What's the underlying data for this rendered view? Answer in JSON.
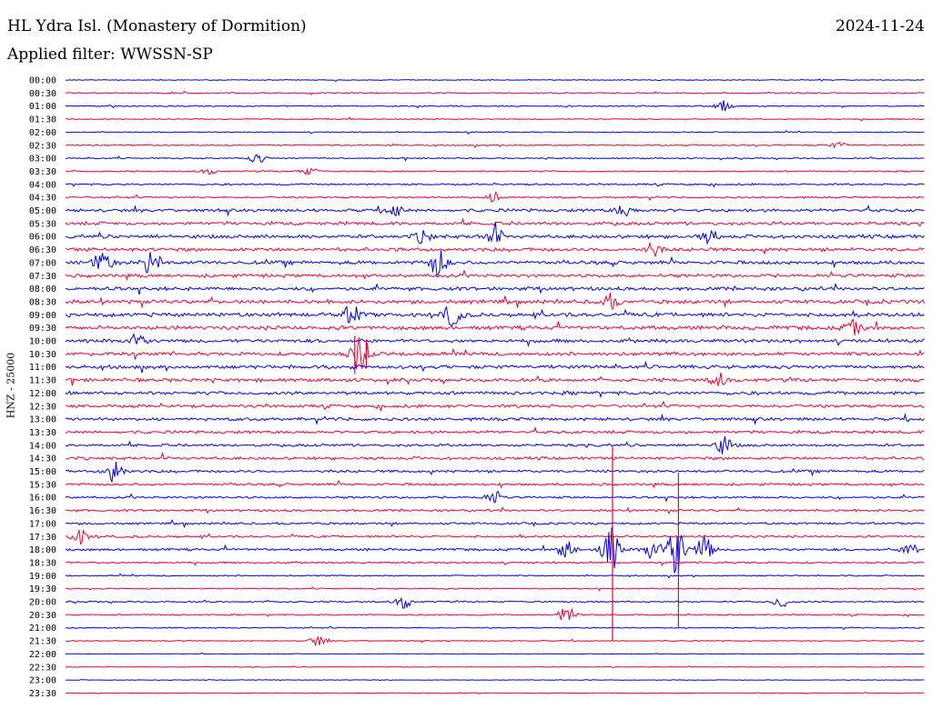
{
  "header": {
    "station": "HL Ydra Isl. (Monastery of Dormition)",
    "date": "2024-11-24",
    "filter": "Applied filter: WWSSN-SP"
  },
  "colors": {
    "odd_trace": "#0000ee",
    "even_trace": "#ee0033"
  },
  "chart_data": {
    "type": "line",
    "title": "HL Ydra Isl. (Monastery of Dormition)",
    "subtitle": "Applied filter: WWSSN-SP",
    "ylabel": "HNZ - 25000",
    "row_labels": [
      "00:00",
      "00:30",
      "01:00",
      "01:30",
      "02:00",
      "02:30",
      "03:00",
      "03:30",
      "04:00",
      "04:30",
      "05:00",
      "05:30",
      "06:00",
      "06:30",
      "07:00",
      "07:30",
      "08:00",
      "08:30",
      "09:00",
      "09:30",
      "10:00",
      "10:30",
      "11:00",
      "11:30",
      "12:00",
      "12:30",
      "13:00",
      "13:30",
      "14:00",
      "14:30",
      "15:00",
      "15:30",
      "16:00",
      "16:30",
      "17:00",
      "17:30",
      "18:00",
      "18:30",
      "19:00",
      "19:30",
      "20:00",
      "20:30",
      "21:00",
      "21:30",
      "22:00",
      "22:30",
      "23:00",
      "23:30"
    ],
    "row_noise": [
      0.4,
      0.6,
      0.6,
      0.5,
      0.5,
      0.6,
      0.6,
      0.6,
      0.8,
      0.8,
      1.4,
      1.5,
      1.6,
      1.6,
      1.6,
      1.5,
      1.6,
      1.7,
      1.8,
      1.8,
      1.6,
      1.6,
      1.6,
      1.6,
      1.5,
      1.4,
      1.4,
      1.3,
      1.2,
      1.3,
      1.2,
      1.1,
      1.0,
      1.0,
      1.0,
      1.0,
      1.1,
      0.8,
      0.6,
      0.5,
      0.7,
      0.6,
      0.5,
      0.5,
      0.3,
      0.3,
      0.3,
      0.3
    ],
    "events": [
      {
        "row": 2,
        "minute": 23.0,
        "amp": 6
      },
      {
        "row": 5,
        "minute": 27.0,
        "amp": 3
      },
      {
        "row": 6,
        "minute": 6.7,
        "amp": 5
      },
      {
        "row": 7,
        "minute": 8.5,
        "amp": 4
      },
      {
        "row": 7,
        "minute": 5.0,
        "amp": 3
      },
      {
        "row": 9,
        "minute": 15.0,
        "amp": 5
      },
      {
        "row": 10,
        "minute": 11.5,
        "amp": 6
      },
      {
        "row": 10,
        "minute": 19.5,
        "amp": 6
      },
      {
        "row": 12,
        "minute": 12.5,
        "amp": 7
      },
      {
        "row": 12,
        "minute": 15.0,
        "amp": 9
      },
      {
        "row": 12,
        "minute": 22.5,
        "amp": 7
      },
      {
        "row": 13,
        "minute": 20.5,
        "amp": 7
      },
      {
        "row": 14,
        "minute": 1.3,
        "amp": 14
      },
      {
        "row": 14,
        "minute": 3.0,
        "amp": 16
      },
      {
        "row": 14,
        "minute": 13.0,
        "amp": 8
      },
      {
        "row": 14,
        "minute": 13.0,
        "amp": 7
      },
      {
        "row": 17,
        "minute": 19.0,
        "amp": 8
      },
      {
        "row": 18,
        "minute": 10.0,
        "amp": 10
      },
      {
        "row": 18,
        "minute": 13.5,
        "amp": 12
      },
      {
        "row": 19,
        "minute": 27.5,
        "amp": 7
      },
      {
        "row": 20,
        "minute": 2.5,
        "amp": 8
      },
      {
        "row": 21,
        "minute": 10.3,
        "amp": 22
      },
      {
        "row": 23,
        "minute": 22.8,
        "amp": 7
      },
      {
        "row": 28,
        "minute": 23.0,
        "amp": 10
      },
      {
        "row": 30,
        "minute": 1.7,
        "amp": 14
      },
      {
        "row": 32,
        "minute": 15.0,
        "amp": 7
      },
      {
        "row": 35,
        "minute": 0.5,
        "amp": 8
      },
      {
        "row": 36,
        "minute": 17.5,
        "amp": 10
      },
      {
        "row": 36,
        "minute": 19.0,
        "amp": 28
      },
      {
        "row": 36,
        "minute": 20.5,
        "amp": 12
      },
      {
        "row": 36,
        "minute": 21.3,
        "amp": 30
      },
      {
        "row": 36,
        "minute": 22.3,
        "amp": 14
      },
      {
        "row": 36,
        "minute": 29.5,
        "amp": 7
      },
      {
        "row": 40,
        "minute": 11.8,
        "amp": 7
      },
      {
        "row": 40,
        "minute": 25.0,
        "amp": 6
      },
      {
        "row": 41,
        "minute": 17.5,
        "amp": 9
      },
      {
        "row": 43,
        "minute": 8.8,
        "amp": 5
      }
    ],
    "spikes": [
      {
        "row": 21,
        "minute": 10.1,
        "up": 20,
        "down": 22
      },
      {
        "row": 21,
        "minute": 10.5,
        "up": 16,
        "down": 16
      },
      {
        "row": 35,
        "minute": 19.1,
        "up": 100,
        "down": 115
      },
      {
        "row": 35,
        "minute": 21.4,
        "up": 70,
        "down": 100
      }
    ],
    "x_range_minutes": [
      0,
      30
    ],
    "grid": false
  }
}
